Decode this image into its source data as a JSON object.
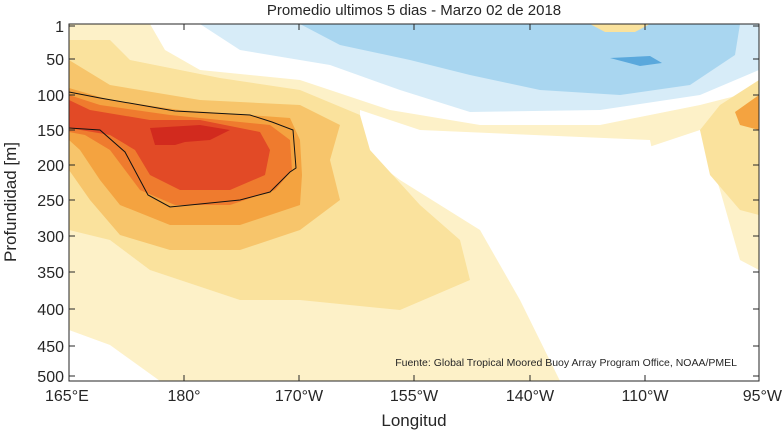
{
  "chart_data": {
    "type": "heatmap",
    "title": "Promedio ultimos 5 dias - Marzo 02 de 2018",
    "xlabel": "Longitud",
    "ylabel": "Profundidad [m]",
    "source_note": "Fuente: Global Tropical Moored Buoy Array Program Office, NOAA/PMEL",
    "x_ticks": [
      "165°E",
      "180°",
      "170°W",
      "155°W",
      "140°W",
      "110°W",
      "95°W"
    ],
    "y_ticks": [
      "1",
      "50",
      "100",
      "150",
      "200",
      "250",
      "300",
      "350",
      "400",
      "450",
      "500"
    ],
    "colors": {
      "cold_light": "#d7ecf8",
      "cold_mid": "#a9d6f0",
      "cold_strong": "#5aa8dc",
      "warm_1": "#fdf1c8",
      "warm_2": "#fae29d",
      "warm_3": "#f7c56b",
      "warm_4": "#f4a340",
      "warm_5": "#ef7b2e",
      "warm_6": "#e24a26",
      "warm_7": "#d22a1e"
    }
  }
}
